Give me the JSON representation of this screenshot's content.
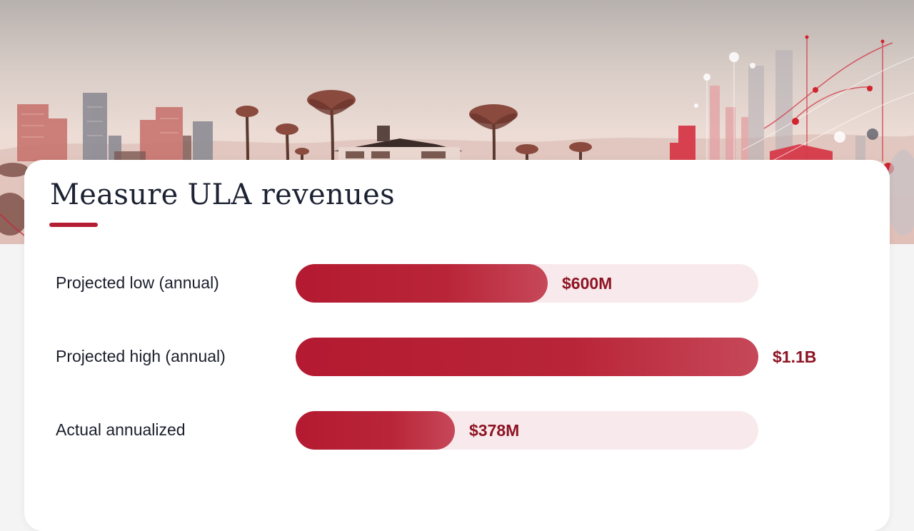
{
  "title": "Measure ULA revenues",
  "colors": {
    "accent": "#b51d32",
    "bar_track": "#f8eaec",
    "value_text": "#8e1424",
    "title_text": "#1c2233"
  },
  "hero": {
    "icon": "city-skyline-illustration"
  },
  "chart_data": {
    "type": "bar",
    "orientation": "horizontal",
    "categories": [
      "Projected low (annual)",
      "Projected high (annual)",
      "Actual annualized"
    ],
    "values": [
      600,
      1100,
      378
    ],
    "value_labels": [
      "$600M",
      "$1.1B",
      "$378M"
    ],
    "unit": "USD millions",
    "xlim": [
      0,
      1100
    ],
    "grid": false,
    "legend": "none"
  }
}
